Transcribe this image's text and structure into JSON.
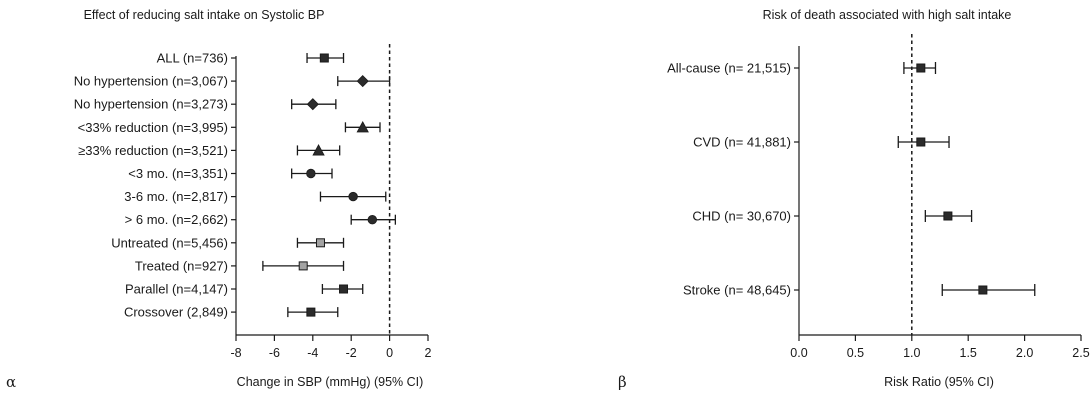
{
  "chart_data": [
    {
      "type": "forest",
      "panel_label": "α",
      "title": "Effect of reducing salt intake on Systolic BP",
      "xlabel": "Change in SBP (mmHg) (95% CI)",
      "xlim": [
        -8,
        2
      ],
      "xticks": [
        "-8",
        "-6",
        "-4",
        "-2",
        "0",
        "2"
      ],
      "reference_line": 0,
      "rows": [
        {
          "label": "ALL (n=736)",
          "estimate": -3.4,
          "lower": -4.3,
          "upper": -2.4,
          "marker": "square",
          "color": "#2b2b2b"
        },
        {
          "label": "No hypertension (n=3,067)",
          "estimate": -1.4,
          "lower": -2.7,
          "upper": 0.0,
          "marker": "diamond",
          "color": "#2b2b2b"
        },
        {
          "label": "No hypertension (n=3,273)",
          "estimate": -4.0,
          "lower": -5.1,
          "upper": -2.8,
          "marker": "diamond",
          "color": "#2b2b2b"
        },
        {
          "label": "<33% reduction (n=3,995)",
          "estimate": -1.4,
          "lower": -2.3,
          "upper": -0.5,
          "marker": "triangle",
          "color": "#2b2b2b"
        },
        {
          "label": "≥33% reduction (n=3,521)",
          "estimate": -3.7,
          "lower": -4.8,
          "upper": -2.6,
          "marker": "triangle",
          "color": "#2b2b2b"
        },
        {
          "label": "<3 mo. (n=3,351)",
          "estimate": -4.1,
          "lower": -5.1,
          "upper": -3.0,
          "marker": "circle",
          "color": "#2b2b2b"
        },
        {
          "label": "3-6 mo. (n=2,817)",
          "estimate": -1.9,
          "lower": -3.6,
          "upper": -0.2,
          "marker": "circle",
          "color": "#2b2b2b"
        },
        {
          "label": "> 6 mo. (n=2,662)",
          "estimate": -0.9,
          "lower": -2.0,
          "upper": 0.3,
          "marker": "circle",
          "color": "#2b2b2b"
        },
        {
          "label": "Untreated (n=5,456)",
          "estimate": -3.6,
          "lower": -4.8,
          "upper": -2.4,
          "marker": "square",
          "color": "#a3a3a3"
        },
        {
          "label": "Treated (n=927)",
          "estimate": -4.5,
          "lower": -6.6,
          "upper": -2.4,
          "marker": "square",
          "color": "#a3a3a3"
        },
        {
          "label": "Parallel (n=4,147)",
          "estimate": -2.4,
          "lower": -3.5,
          "upper": -1.4,
          "marker": "square",
          "color": "#2b2b2b"
        },
        {
          "label": "Crossover (2,849)",
          "estimate": -4.1,
          "lower": -5.3,
          "upper": -2.7,
          "marker": "square",
          "color": "#2b2b2b"
        }
      ]
    },
    {
      "type": "forest",
      "panel_label": "β",
      "title": "Risk of death associated with high salt intake",
      "xlabel": "Risk Ratio (95% CI)",
      "xlim": [
        0.0,
        2.5
      ],
      "xticks": [
        "0.0",
        "0.5",
        "1.0",
        "1.5",
        "2.0",
        "2.5"
      ],
      "reference_line": 1.0,
      "rows": [
        {
          "label": "All-cause (n= 21,515)",
          "estimate": 1.08,
          "lower": 0.93,
          "upper": 1.21,
          "marker": "square",
          "color": "#2b2b2b"
        },
        {
          "label": "CVD (n= 41,881)",
          "estimate": 1.08,
          "lower": 0.88,
          "upper": 1.33,
          "marker": "square",
          "color": "#2b2b2b"
        },
        {
          "label": "CHD (n= 30,670)",
          "estimate": 1.32,
          "lower": 1.12,
          "upper": 1.53,
          "marker": "square",
          "color": "#2b2b2b"
        },
        {
          "label": "Stroke (n= 48,645)",
          "estimate": 1.63,
          "lower": 1.27,
          "upper": 2.09,
          "marker": "square",
          "color": "#2b2b2b"
        }
      ]
    }
  ]
}
